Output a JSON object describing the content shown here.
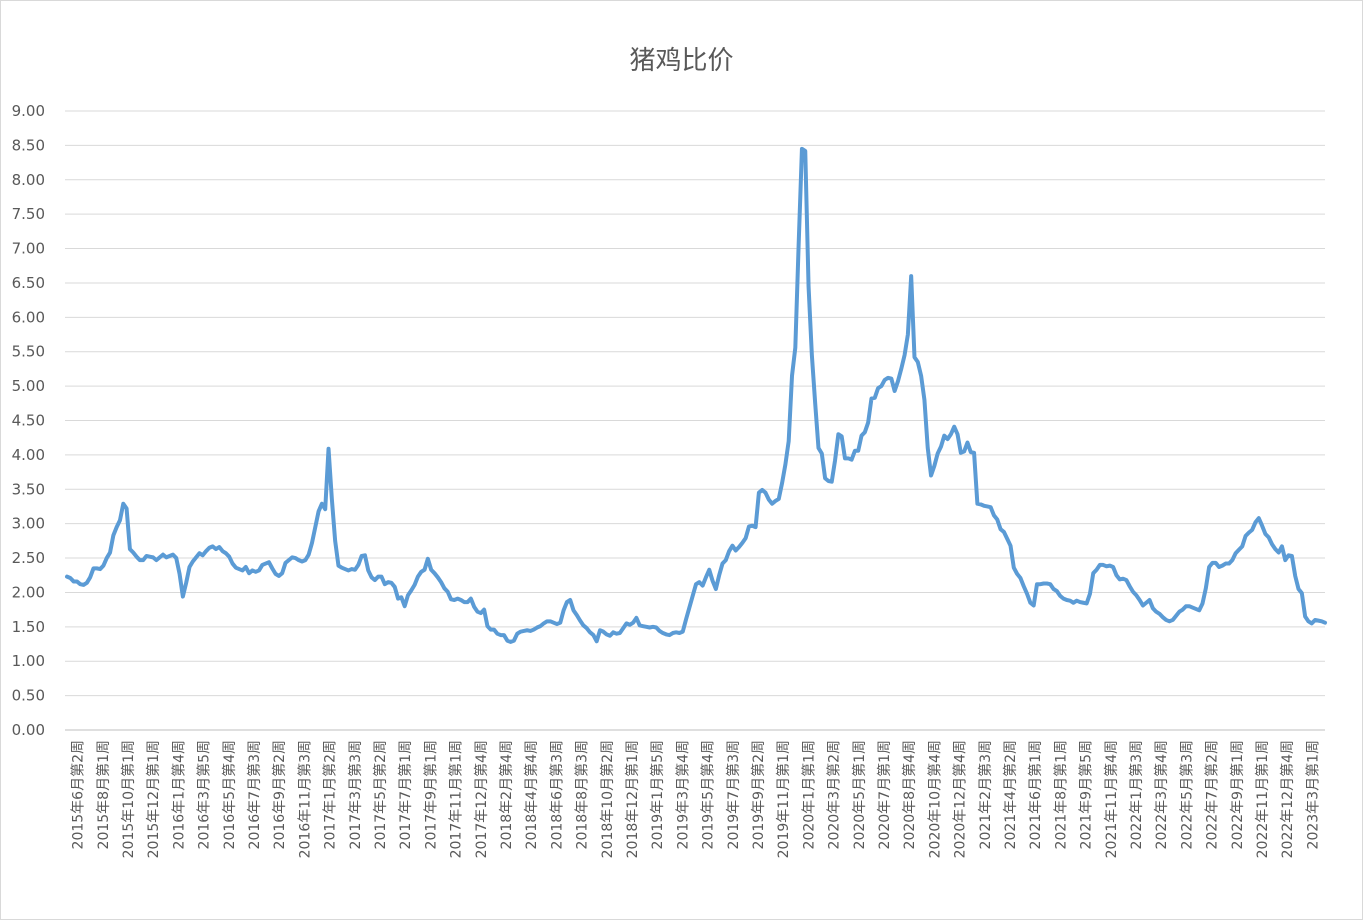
{
  "chart_data": {
    "type": "line",
    "title": "猪鸡比价",
    "xlabel": "",
    "ylabel": "",
    "ylim": [
      0,
      9
    ],
    "yticks": [
      "0.00",
      "0.50",
      "1.00",
      "1.50",
      "2.00",
      "2.50",
      "3.00",
      "3.50",
      "4.00",
      "4.50",
      "5.00",
      "5.50",
      "6.00",
      "6.50",
      "7.00",
      "7.50",
      "8.00",
      "8.50",
      "9.00"
    ],
    "grid": true,
    "legend": "none",
    "x_tick_labels": [
      "2015年6月第2周",
      "2015年8月第1周",
      "2015年10月第1周",
      "2015年12月第1周",
      "2016年1月第4周",
      "2016年3月第5周",
      "2016年5月第4周",
      "2016年7月第3周",
      "2016年9月第2周",
      "2016年11月第3周",
      "2017年1月第2周",
      "2017年3月第3周",
      "2017年5月第2周",
      "2017年7月第1周",
      "2017年9月第1周",
      "2017年11月第1周",
      "2017年12月第4周",
      "2018年2月第4周",
      "2018年4月第4周",
      "2018年6月第3周",
      "2018年8月第3周",
      "2018年10月第2周",
      "2018年12月第1周",
      "2019年1月第5周",
      "2019年3月第4周",
      "2019年5月第4周",
      "2019年7月第3周",
      "2019年9月第2周",
      "2019年11月第1周",
      "2020年1月第1周",
      "2020年3月第2周",
      "2020年5月第1周",
      "2020年7月第1周",
      "2020年8月第4周",
      "2020年10月第4周",
      "2020年12月第4周",
      "2021年2月第3周",
      "2021年4月第2周",
      "2021年6月第1周",
      "2021年8月第1周",
      "2021年9月第5周",
      "2021年11月第4周",
      "2022年1月第3周",
      "2022年3月第4周",
      "2022年5月第3周",
      "2022年7月第2周",
      "2022年9月第1周",
      "2022年11月第1周",
      "2022年12月第4周",
      "2023年3月第1周"
    ],
    "series": [
      {
        "color": "#5b9bd5",
        "values": [
          2.23,
          2.21,
          2.16,
          2.16,
          2.12,
          2.11,
          2.14,
          2.22,
          2.35,
          2.35,
          2.34,
          2.39,
          2.5,
          2.58,
          2.83,
          2.95,
          3.05,
          3.29,
          3.22,
          2.63,
          2.58,
          2.52,
          2.47,
          2.47,
          2.53,
          2.52,
          2.51,
          2.47,
          2.51,
          2.55,
          2.51,
          2.53,
          2.55,
          2.5,
          2.27,
          1.94,
          2.14,
          2.37,
          2.45,
          2.51,
          2.57,
          2.54,
          2.6,
          2.65,
          2.67,
          2.63,
          2.66,
          2.6,
          2.57,
          2.52,
          2.42,
          2.36,
          2.34,
          2.32,
          2.37,
          2.28,
          2.32,
          2.3,
          2.32,
          2.4,
          2.42,
          2.44,
          2.35,
          2.27,
          2.24,
          2.28,
          2.43,
          2.47,
          2.51,
          2.5,
          2.47,
          2.45,
          2.47,
          2.55,
          2.72,
          2.95,
          3.18,
          3.29,
          3.21,
          4.09,
          3.36,
          2.75,
          2.39,
          2.36,
          2.34,
          2.32,
          2.34,
          2.33,
          2.4,
          2.53,
          2.54,
          2.32,
          2.22,
          2.18,
          2.23,
          2.23,
          2.12,
          2.15,
          2.14,
          2.08,
          1.91,
          1.93,
          1.8,
          1.96,
          2.03,
          2.11,
          2.23,
          2.3,
          2.33,
          2.49,
          2.33,
          2.28,
          2.22,
          2.15,
          2.06,
          2.01,
          1.9,
          1.89,
          1.91,
          1.89,
          1.86,
          1.86,
          1.91,
          1.79,
          1.72,
          1.7,
          1.75,
          1.51,
          1.46,
          1.46,
          1.4,
          1.38,
          1.38,
          1.3,
          1.28,
          1.3,
          1.4,
          1.43,
          1.44,
          1.45,
          1.44,
          1.46,
          1.49,
          1.51,
          1.55,
          1.58,
          1.58,
          1.56,
          1.54,
          1.56,
          1.74,
          1.86,
          1.89,
          1.74,
          1.67,
          1.59,
          1.52,
          1.48,
          1.42,
          1.38,
          1.29,
          1.45,
          1.43,
          1.39,
          1.37,
          1.42,
          1.4,
          1.41,
          1.48,
          1.55,
          1.53,
          1.56,
          1.63,
          1.52,
          1.51,
          1.5,
          1.49,
          1.5,
          1.49,
          1.44,
          1.41,
          1.39,
          1.38,
          1.41,
          1.42,
          1.41,
          1.43,
          1.61,
          1.78,
          1.95,
          2.12,
          2.15,
          2.1,
          2.22,
          2.33,
          2.17,
          2.05,
          2.25,
          2.42,
          2.47,
          2.6,
          2.68,
          2.61,
          2.66,
          2.72,
          2.79,
          2.96,
          2.97,
          2.95,
          3.45,
          3.49,
          3.45,
          3.35,
          3.29,
          3.33,
          3.36,
          3.59,
          3.86,
          4.2,
          5.15,
          5.56,
          7.05,
          8.45,
          8.42,
          6.45,
          5.45,
          4.75,
          4.1,
          4.02,
          3.66,
          3.62,
          3.61,
          3.92,
          4.3,
          4.27,
          3.95,
          3.95,
          3.93,
          4.06,
          4.06,
          4.28,
          4.33,
          4.47,
          4.82,
          4.83,
          4.97,
          5.0,
          5.09,
          5.12,
          5.11,
          4.93,
          5.07,
          5.25,
          5.45,
          5.75,
          6.6,
          5.42,
          5.35,
          5.15,
          4.8,
          4.1,
          3.7,
          3.84,
          4.02,
          4.12,
          4.28,
          4.23,
          4.3,
          4.41,
          4.3,
          4.03,
          4.05,
          4.18,
          4.04,
          4.03,
          3.29,
          3.28,
          3.26,
          3.25,
          3.24,
          3.12,
          3.06,
          2.92,
          2.88,
          2.78,
          2.68,
          2.36,
          2.27,
          2.21,
          2.09,
          1.98,
          1.85,
          1.81,
          2.12,
          2.12,
          2.13,
          2.13,
          2.12,
          2.05,
          2.02,
          1.95,
          1.91,
          1.89,
          1.88,
          1.85,
          1.88,
          1.86,
          1.85,
          1.84,
          1.98,
          2.28,
          2.33,
          2.4,
          2.4,
          2.38,
          2.39,
          2.37,
          2.25,
          2.19,
          2.2,
          2.18,
          2.09,
          2.01,
          1.96,
          1.89,
          1.81,
          1.85,
          1.89,
          1.77,
          1.72,
          1.69,
          1.64,
          1.6,
          1.58,
          1.6,
          1.66,
          1.72,
          1.75,
          1.8,
          1.8,
          1.78,
          1.76,
          1.74,
          1.84,
          2.06,
          2.37,
          2.43,
          2.43,
          2.37,
          2.39,
          2.42,
          2.42,
          2.47,
          2.57,
          2.62,
          2.67,
          2.82,
          2.87,
          2.91,
          3.02,
          3.08,
          2.97,
          2.85,
          2.8,
          2.7,
          2.63,
          2.58,
          2.67,
          2.47,
          2.54,
          2.53,
          2.24,
          2.05,
          1.99,
          1.65,
          1.58,
          1.55,
          1.6,
          1.59,
          1.58,
          1.56
        ]
      }
    ]
  }
}
